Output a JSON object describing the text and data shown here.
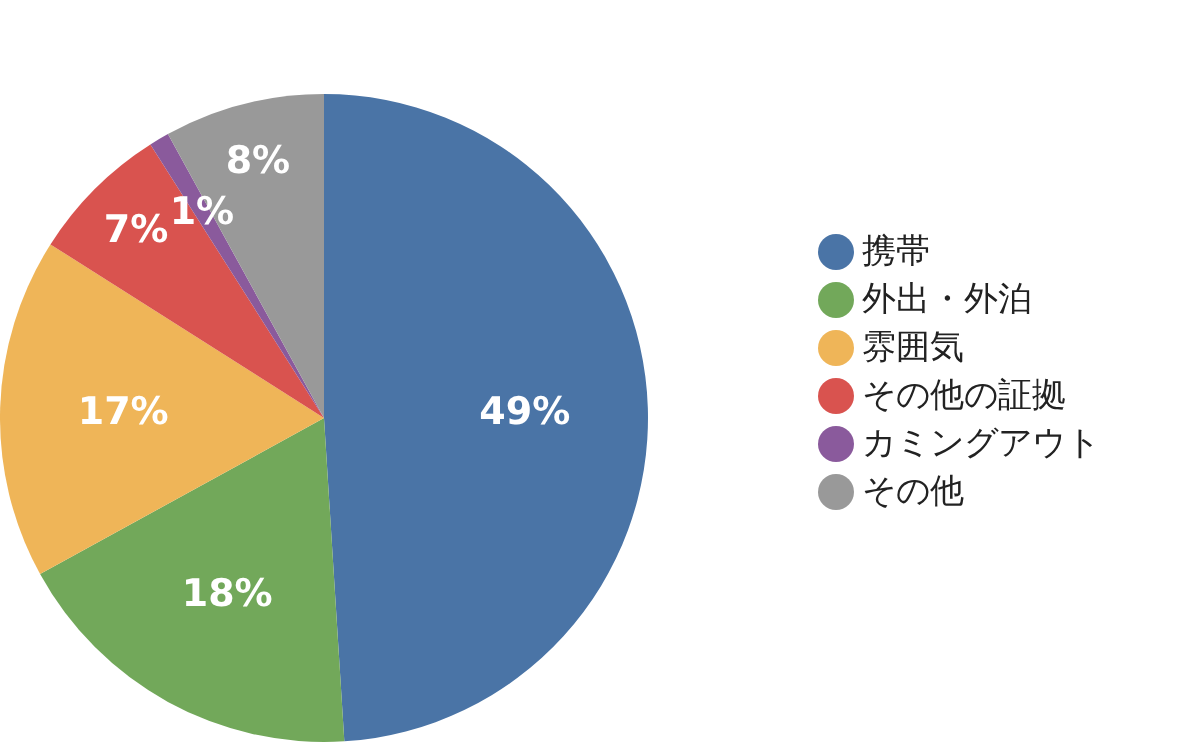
{
  "chart_data": {
    "type": "pie",
    "categories": [
      "携帯",
      "外出・外泊",
      "雰囲気",
      "その他の証拠",
      "カミングアウト",
      "その他"
    ],
    "values": [
      49,
      18,
      17,
      7,
      1,
      8
    ],
    "colors": [
      "#4a74a6",
      "#72a85a",
      "#efb558",
      "#d9534f",
      "#8a5a9c",
      "#999999"
    ],
    "value_labels": [
      "49%",
      "18%",
      "17%",
      "7%",
      "1%",
      "8%"
    ],
    "legend": "right"
  }
}
